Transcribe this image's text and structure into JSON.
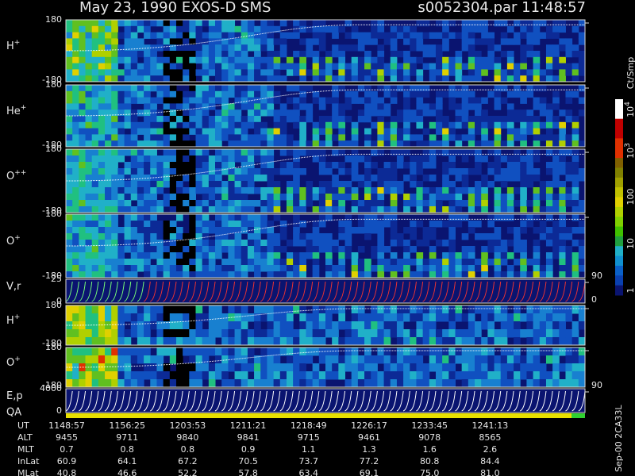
{
  "header": {
    "title": "May 23, 1990   EXOS-D SMS",
    "file_time": "s0052304.par  11:48:57"
  },
  "panels": [
    {
      "label": {
        "base": "H",
        "sup": "+"
      },
      "ticks": [
        "180",
        "-180"
      ]
    },
    {
      "label": {
        "base": "He",
        "sup": "+"
      },
      "ticks": [
        "180",
        "-180"
      ]
    },
    {
      "label": {
        "base": "O",
        "sup": "++"
      },
      "ticks": [
        "180",
        "-180"
      ]
    },
    {
      "label": {
        "base": "O",
        "sup": "+"
      },
      "ticks": [
        "180",
        "-180"
      ]
    },
    {
      "label": {
        "base": "V,r",
        "sup": ""
      },
      "ticks": [
        "25",
        "0"
      ],
      "right_ticks": [
        "90",
        "0"
      ]
    },
    {
      "label": {
        "base": "H",
        "sup": "+"
      },
      "ticks": [
        "180",
        "-180"
      ]
    },
    {
      "label": {
        "base": "O",
        "sup": "+"
      },
      "ticks": [
        "180",
        "-180"
      ]
    },
    {
      "label": {
        "base": "E,p",
        "sup": ""
      },
      "ticks": [
        "4000",
        "0"
      ],
      "right_ticks": [
        "90"
      ]
    }
  ],
  "qa_label": "QA",
  "colorbar": {
    "title": "Ct/Smp",
    "labels": [
      {
        "base": "10",
        "sup": "4"
      },
      {
        "base": "10",
        "sup": "3"
      },
      {
        "base": "100",
        "sup": ""
      },
      {
        "base": "10",
        "sup": ""
      },
      {
        "base": "1",
        "sup": ""
      }
    ]
  },
  "table": {
    "rows": [
      {
        "name": "UT",
        "cells": [
          "1148:57",
          "1156:25",
          "1203:53",
          "1211:21",
          "1218:49",
          "1226:17",
          "1233:45",
          "1241:13"
        ]
      },
      {
        "name": "ALT",
        "cells": [
          "9455",
          "9711",
          "9840",
          "9841",
          "9715",
          "9461",
          "9078",
          "8565"
        ]
      },
      {
        "name": "MLT",
        "cells": [
          "0.7",
          "0.8",
          "0.8",
          "0.9",
          "1.1",
          "1.3",
          "1.6",
          "2.6"
        ]
      },
      {
        "name": "InLat",
        "cells": [
          "60.9",
          "64.1",
          "67.2",
          "70.5",
          "73.7",
          "77.2",
          "80.8",
          "84.4"
        ]
      },
      {
        "name": "MLat",
        "cells": [
          "40.8",
          "46.6",
          "52.2",
          "57.8",
          "63.4",
          "69.1",
          "75.0",
          "81.0"
        ]
      }
    ]
  },
  "footer_id": "Sep-00  2CA33L"
}
